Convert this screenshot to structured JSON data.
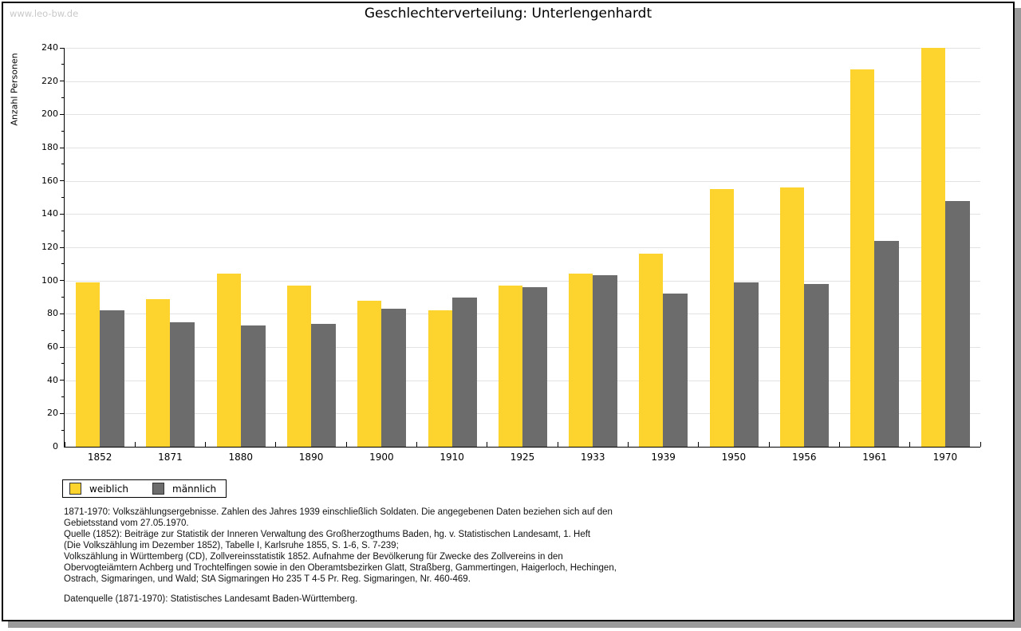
{
  "watermark": "www.leo-bw.de",
  "title": "Geschlechterverteilung: Unterlengenhardt",
  "legend": {
    "female": "weiblich",
    "male": "männlich"
  },
  "colors": {
    "female_bar": "#fdd42e",
    "male_bar": "#6c6c6c",
    "gridline": "#e2e2e2",
    "watermark": "#c9c9c9",
    "shadow": "#9a9a9a"
  },
  "chart_data": {
    "type": "bar",
    "title": "Geschlechterverteilung: Unterlengenhardt",
    "xlabel": "",
    "ylabel": "Anzahl Personen",
    "ylim": [
      0,
      240
    ],
    "ytick_step": 20,
    "yticks": [
      0,
      20,
      40,
      60,
      80,
      100,
      120,
      140,
      160,
      180,
      200,
      220,
      240
    ],
    "grid": true,
    "legend_position": "bottom-left",
    "categories": [
      "1852",
      "1871",
      "1880",
      "1890",
      "1900",
      "1910",
      "1925",
      "1933",
      "1939",
      "1950",
      "1956",
      "1961",
      "1970"
    ],
    "series": [
      {
        "name": "weiblich",
        "color": "#fdd42e",
        "values": [
          99,
          89,
          104,
          97,
          88,
          82,
          97,
          104,
          116,
          155,
          156,
          227,
          240
        ]
      },
      {
        "name": "männlich",
        "color": "#6c6c6c",
        "values": [
          82,
          75,
          73,
          74,
          83,
          90,
          96,
          103,
          92,
          99,
          98,
          124,
          148
        ]
      }
    ]
  },
  "footnote": "1871-1970: Volkszählungsergebnisse. Zahlen des Jahres 1939 einschließlich Soldaten. Die angegebenen Daten beziehen sich auf den\nGebietsstand vom 27.05.1970.\nQuelle (1852): Beiträge zur Statistik der Inneren Verwaltung des Großherzogthums Baden, hg. v. Statistischen Landesamt, 1. Heft\n(Die Volkszählung im Dezember 1852), Tabelle I, Karlsruhe 1855, S. 1-6, S. 7-239;\nVolkszählung in Württemberg (CD), Zollvereinsstatistik 1852. Aufnahme der Bevölkerung für Zwecke des Zollvereins in den\nObervogteiämtern Achberg und Trochtelfingen sowie in den Oberamtsbezirken Glatt, Straßberg, Gammertingen, Haigerloch, Hechingen,\nOstrach, Sigmaringen, und Wald; StA Sigmaringen Ho 235 T 4-5 Pr. Reg. Sigmaringen, Nr. 460-469.",
  "datasource": "Datenquelle (1871-1970): Statistisches Landesamt Baden-Württemberg."
}
